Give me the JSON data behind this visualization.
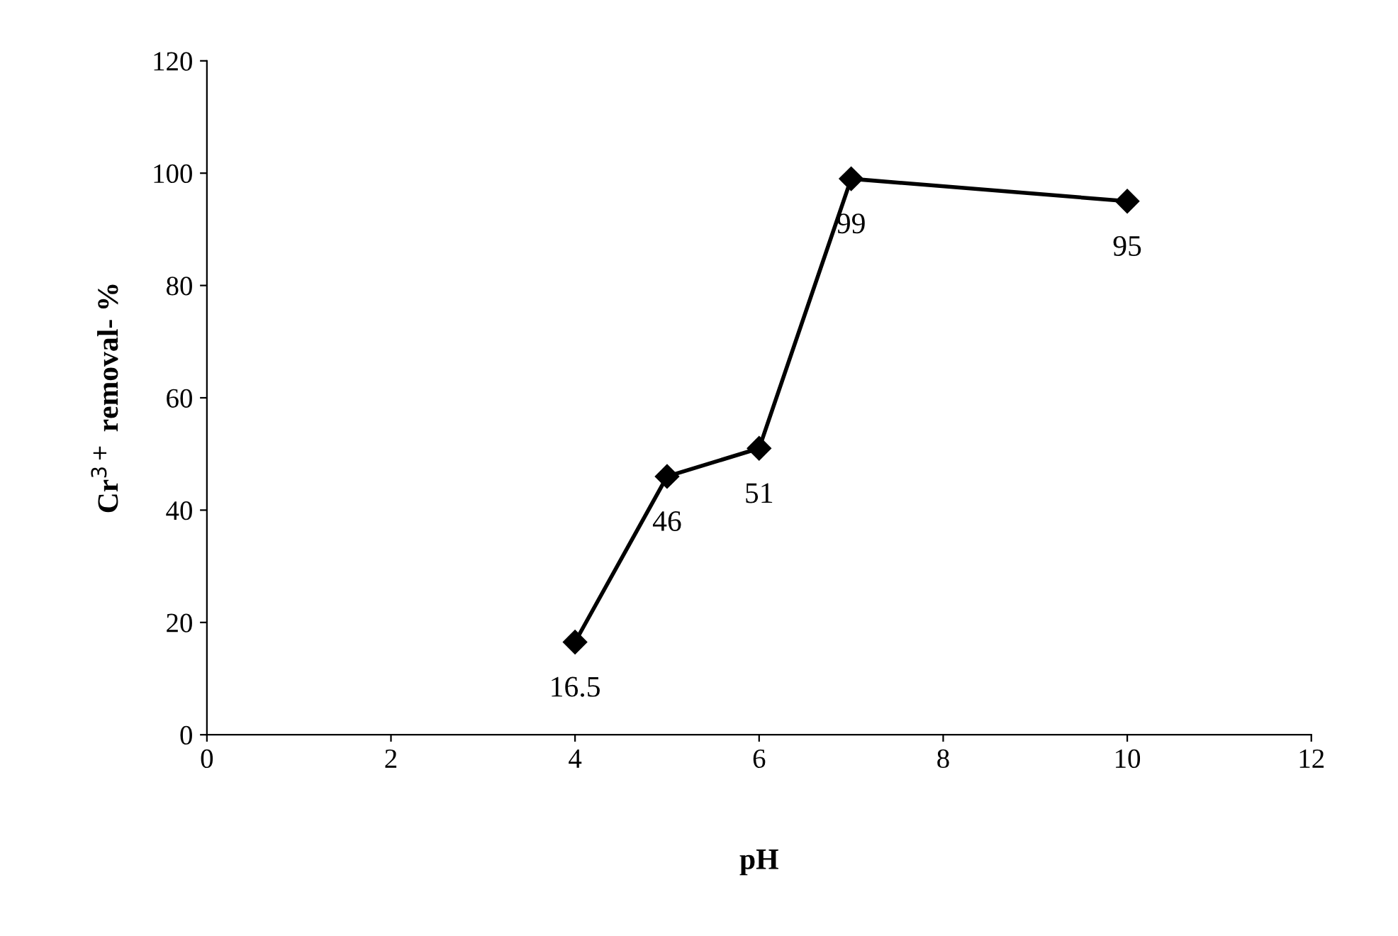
{
  "chart_data": {
    "type": "line",
    "xlabel": "pH",
    "ylabel": "Cr$^{3+}$ removal- %",
    "x": [
      4,
      5,
      6,
      7,
      10
    ],
    "series": [
      {
        "color": "#000000",
        "values": [
          16.5,
          46,
          51,
          99,
          95
        ]
      }
    ],
    "xlim": [
      0,
      12
    ],
    "xticks": [
      0,
      2,
      4,
      6,
      8,
      10,
      12
    ],
    "ylim": [
      0,
      120
    ],
    "yticks": [
      0,
      20,
      40,
      60,
      80,
      100,
      120
    ],
    "grid": false,
    "legend": false,
    "marker": "diamond",
    "line_style": "solid",
    "data_labels": true
  }
}
